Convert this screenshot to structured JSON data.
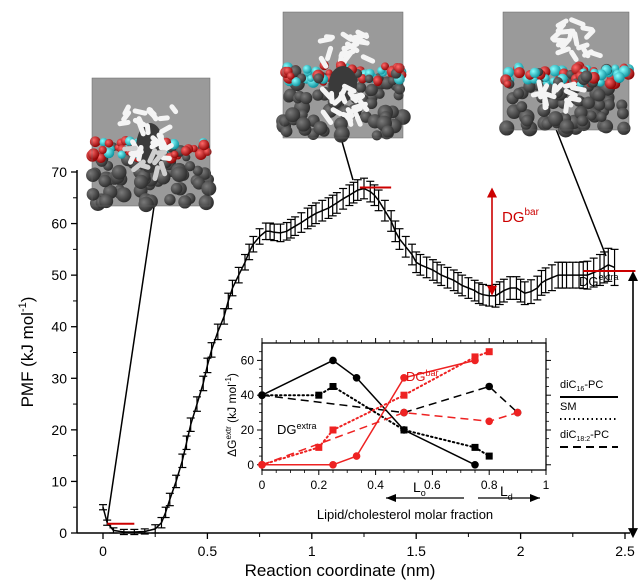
{
  "chart_data": [
    {
      "type": "line",
      "xlabel": "Reaction coordinate (nm)",
      "ylabel": "PMF (kJ mol",
      "ylabel_sup": "-1",
      "ylabel_close": ")",
      "xlim": [
        0,
        2.5
      ],
      "ylim": [
        0,
        70
      ],
      "xticks": [
        0,
        0.5,
        1,
        1.5,
        2,
        2.5
      ],
      "xtick_labels": [
        "0",
        "0.5",
        "1",
        "1.5",
        "2",
        "2.5"
      ],
      "yticks": [
        0,
        10,
        20,
        30,
        40,
        50,
        60,
        70
      ],
      "ytick_labels": [
        "0",
        "10",
        "20",
        "30",
        "40",
        "50",
        "60",
        "70"
      ],
      "color": "#000000",
      "x": [
        0.0,
        0.02,
        0.05,
        0.1,
        0.15,
        0.2,
        0.25,
        0.28,
        0.3,
        0.32,
        0.35,
        0.38,
        0.4,
        0.42,
        0.45,
        0.48,
        0.5,
        0.52,
        0.55,
        0.58,
        0.6,
        0.62,
        0.65,
        0.68,
        0.7,
        0.72,
        0.75,
        0.78,
        0.8,
        0.82,
        0.85,
        0.88,
        0.9,
        0.92,
        0.95,
        0.98,
        1.0,
        1.02,
        1.05,
        1.08,
        1.1,
        1.12,
        1.15,
        1.18,
        1.2,
        1.22,
        1.25,
        1.28,
        1.3,
        1.32,
        1.35,
        1.38,
        1.4,
        1.42,
        1.45,
        1.48,
        1.5,
        1.52,
        1.55,
        1.58,
        1.6,
        1.62,
        1.65,
        1.68,
        1.7,
        1.72,
        1.75,
        1.78,
        1.8,
        1.82,
        1.85,
        1.88,
        1.9,
        1.92,
        1.95,
        1.98,
        2.0,
        2.02,
        2.05,
        2.08,
        2.1,
        2.12,
        2.15,
        2.18,
        2.2,
        2.22,
        2.25,
        2.28,
        2.3,
        2.32,
        2.35,
        2.38,
        2.4,
        2.42,
        2.45
      ],
      "y": [
        5.0,
        2.0,
        0.5,
        0.2,
        0.2,
        0.3,
        0.8,
        2.0,
        4.0,
        6.5,
        10.0,
        14.0,
        17.5,
        21.0,
        25.0,
        29.0,
        32.5,
        35.5,
        39.0,
        42.0,
        45.0,
        47.5,
        50.0,
        52.5,
        54.5,
        56.0,
        57.5,
        58.5,
        58.5,
        58.3,
        58.2,
        58.5,
        59.0,
        59.5,
        60.2,
        61.0,
        61.5,
        62.0,
        62.5,
        63.0,
        63.5,
        64.0,
        64.8,
        65.5,
        66.0,
        66.5,
        66.8,
        66.2,
        65.5,
        64.5,
        62.5,
        60.5,
        58.5,
        57.0,
        55.5,
        54.0,
        52.5,
        52.0,
        51.5,
        51.0,
        50.5,
        50.0,
        49.5,
        49.0,
        48.5,
        48.0,
        47.5,
        47.0,
        46.5,
        46.2,
        46.0,
        46.0,
        46.5,
        47.0,
        47.5,
        47.5,
        47.0,
        46.5,
        46.8,
        47.5,
        48.5,
        49.0,
        49.5,
        50.0,
        50.0,
        50.0,
        50.0,
        50.0,
        50.0,
        50.0,
        50.5,
        51.0,
        51.5,
        52.0,
        51.5
      ],
      "error": [
        0.5,
        0.5,
        0.5,
        0.5,
        0.5,
        0.5,
        0.8,
        1.0,
        1.0,
        1.2,
        1.2,
        1.3,
        1.3,
        1.3,
        1.4,
        1.4,
        1.4,
        1.4,
        1.5,
        1.5,
        1.5,
        1.5,
        1.5,
        1.5,
        1.5,
        1.5,
        1.5,
        1.6,
        1.6,
        1.6,
        1.7,
        1.7,
        1.8,
        1.8,
        1.9,
        2.0,
        2.0,
        2.0,
        2.0,
        2.0,
        2.0,
        2.0,
        2.0,
        2.0,
        2.0,
        2.0,
        2.0,
        2.0,
        2.0,
        2.0,
        2.0,
        2.0,
        2.0,
        2.0,
        2.0,
        2.0,
        2.0,
        2.0,
        2.0,
        2.0,
        2.0,
        2.0,
        2.0,
        2.0,
        2.0,
        2.0,
        2.0,
        2.0,
        2.0,
        2.0,
        2.0,
        2.2,
        2.2,
        2.2,
        2.2,
        2.2,
        2.2,
        2.2,
        2.3,
        2.3,
        2.4,
        2.4,
        2.5,
        2.5,
        2.5,
        2.5,
        2.5,
        2.5,
        2.6,
        2.7,
        2.8,
        3.0,
        3.0,
        3.2,
        3.5
      ],
      "reference_lines": [
        {
          "x": [
            0.02,
            0.15
          ],
          "y": 1.8,
          "color": "#cc0000"
        },
        {
          "x": [
            1.23,
            1.38
          ],
          "y": 67.0,
          "color": "#cc0000"
        },
        {
          "x": [
            2.3,
            2.55
          ],
          "y": 50.8,
          "color": "#cc0000"
        }
      ],
      "annotations": {
        "dg_bar": {
          "main": "DG",
          "sup": "bar",
          "color": "#cc0000",
          "arrow_y": [
            46.0,
            67.0
          ]
        },
        "dg_extra": {
          "main": "DG",
          "sup": "extra",
          "color": "#000000",
          "arrow_y": [
            -1.0,
            50.8
          ]
        }
      }
    },
    {
      "type": "line",
      "xlabel": "Lipid/cholesterol molar fraction",
      "ylabel_main": "ΔG",
      "ylabel_sup": "extr",
      "ylabel_tail": " (kJ mol",
      "ylabel_sup2": "-1",
      "ylabel_close": ")",
      "xlim": [
        0,
        1
      ],
      "ylim": [
        -3,
        70
      ],
      "xticks": [
        0,
        0.2,
        0.4,
        0.6,
        0.8,
        1
      ],
      "xtick_labels": [
        "0",
        "0.2",
        "0.4",
        "0.6",
        "0.8",
        "1"
      ],
      "yticks": [
        0,
        20,
        40,
        60
      ],
      "ytick_labels": [
        "0",
        "20",
        "40",
        "60"
      ],
      "series": [
        {
          "group": "DG extra",
          "lipid": "diC16-PC",
          "style": "solid",
          "marker": "circle",
          "color": "#000000",
          "x": [
            0,
            0.25,
            0.333,
            0.5,
            0.75
          ],
          "y": [
            40,
            60,
            50,
            20,
            0
          ]
        },
        {
          "group": "DG extra",
          "lipid": "SM",
          "style": "dotted",
          "marker": "square",
          "color": "#000000",
          "x": [
            0,
            0.2,
            0.25,
            0.5,
            0.75,
            0.8
          ],
          "y": [
            40,
            40,
            45,
            20,
            10,
            5
          ]
        },
        {
          "group": "DG extra",
          "lipid": "diC18:2-PC",
          "style": "dashed",
          "marker": "circle",
          "color": "#000000",
          "x": [
            0,
            0.5,
            0.8,
            0.9
          ],
          "y": [
            40,
            30,
            45,
            30
          ]
        },
        {
          "group": "DG bar",
          "lipid": "diC16-PC",
          "style": "solid",
          "marker": "circle",
          "color": "#ee2222",
          "x": [
            0,
            0.25,
            0.333,
            0.5,
            0.75
          ],
          "y": [
            0,
            0,
            5,
            50,
            60
          ]
        },
        {
          "group": "DG bar",
          "lipid": "SM",
          "style": "dotted",
          "marker": "square",
          "color": "#ee2222",
          "x": [
            0,
            0.2,
            0.25,
            0.5,
            0.75,
            0.8
          ],
          "y": [
            0,
            10,
            20,
            40,
            62,
            65
          ]
        },
        {
          "group": "DG bar",
          "lipid": "diC18:2-PC",
          "style": "dashed",
          "marker": "circle",
          "color": "#ee2222",
          "x": [
            0,
            0.5,
            0.8,
            0.9
          ],
          "y": [
            0,
            30,
            25,
            30
          ]
        }
      ],
      "labels": {
        "dg_bar": {
          "main": "DG",
          "sup": "bar"
        },
        "dg_extra": {
          "main": "DG",
          "sup": "extra"
        },
        "lo": {
          "main": "L",
          "sub": "o"
        },
        "ld": {
          "main": "L",
          "sub": "d"
        }
      },
      "legend": {
        "placement": "right",
        "entries": [
          {
            "main": "diC",
            "sub": "16",
            "tail": "-PC",
            "style": "solid"
          },
          {
            "main": "SM",
            "sub": "",
            "tail": "",
            "style": "dotted"
          },
          {
            "main": "diC",
            "sub": "18:2",
            "tail": "-PC",
            "style": "dashed"
          }
        ]
      }
    }
  ],
  "snapshots": [
    {
      "name": "membrane-snapshot-1"
    },
    {
      "name": "membrane-snapshot-2"
    },
    {
      "name": "membrane-snapshot-3"
    }
  ]
}
